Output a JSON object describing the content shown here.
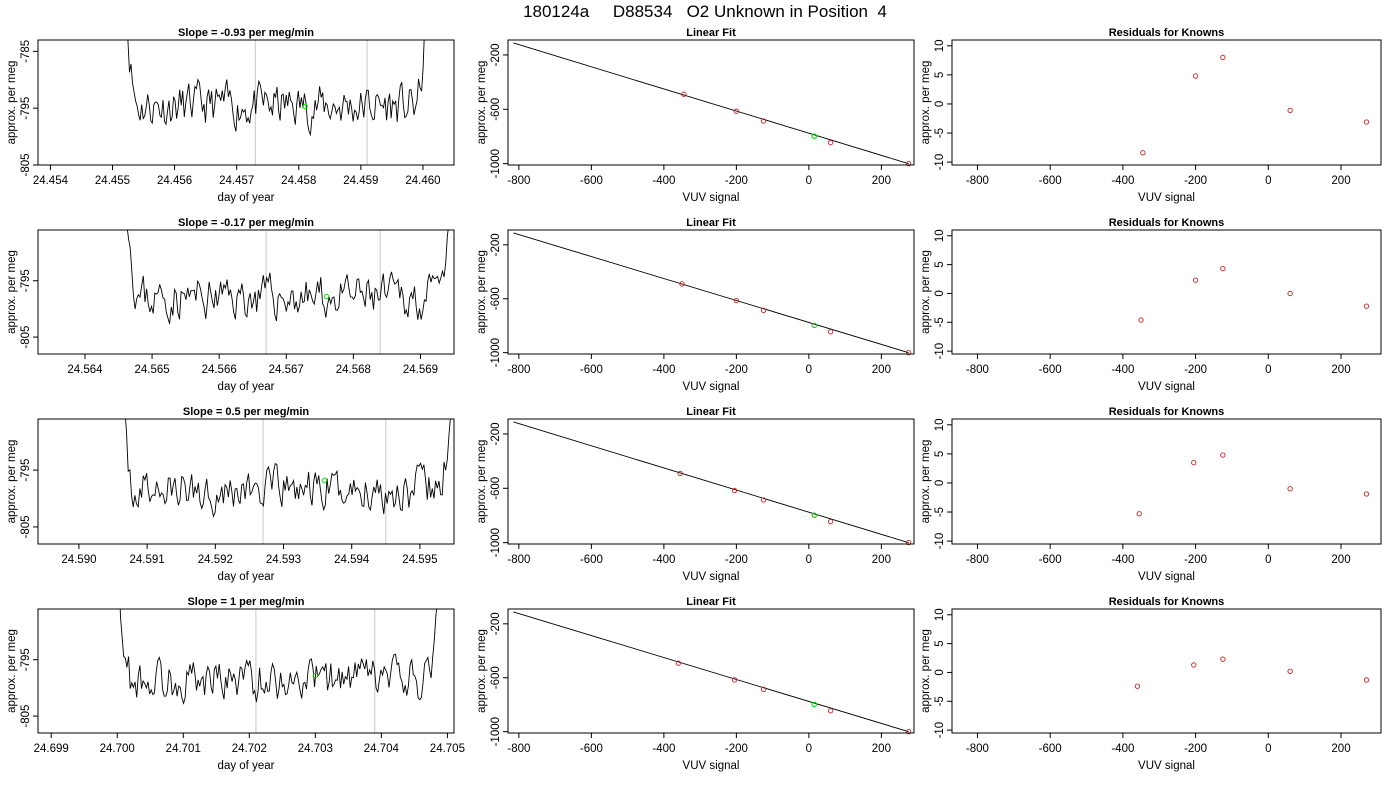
{
  "title": "180124a     D88534   O2 Unknown in Position  4",
  "colors": {
    "trace": "#000000",
    "unknown_point": "#00e000",
    "known_point": "#cc2222",
    "guide_line": "#c8c8c8",
    "fit_line": "#000000"
  },
  "chart_data": [
    {
      "type": "line",
      "role": "trace",
      "title": "Slope =  -0.93  per meg/min",
      "xlabel": "day of year",
      "ylabel": "approx. per meg",
      "xlim": [
        24.4538,
        24.4605
      ],
      "ylim": [
        -805,
        -783
      ],
      "xticks": [
        24.454,
        24.455,
        24.456,
        24.457,
        24.458,
        24.459,
        24.46
      ],
      "xtick_labels": [
        "24.454",
        "24.455",
        "24.456",
        "24.457",
        "24.458",
        "24.459",
        "24.460"
      ],
      "yticks": [
        -785,
        -795,
        -805
      ],
      "ytick_labels": [
        "-785",
        "-795",
        "-805"
      ],
      "vlines": [
        24.4573,
        24.4591
      ],
      "trace_start": 24.4552,
      "trace_end": 24.4601,
      "center": -794.6,
      "marker": {
        "x": 24.4581,
        "y": -794.7
      },
      "seed": 11
    },
    {
      "type": "line",
      "role": "trace",
      "title": "Slope =  -0.17  per meg/min",
      "xlabel": "day of year",
      "ylabel": "approx. per meg",
      "xlim": [
        24.5633,
        24.5695
      ],
      "ylim": [
        -808,
        -786
      ],
      "xticks": [
        24.564,
        24.565,
        24.566,
        24.567,
        24.568,
        24.569
      ],
      "xtick_labels": [
        "24.564",
        "24.565",
        "24.566",
        "24.567",
        "24.568",
        "24.569"
      ],
      "yticks": [
        -795,
        -805
      ],
      "ytick_labels": [
        "-795",
        "-805"
      ],
      "vlines": [
        24.5667,
        24.5684
      ],
      "trace_start": 24.5646,
      "trace_end": 24.5695,
      "center": -798.0,
      "marker": {
        "x": 24.5676,
        "y": -797.8
      },
      "seed": 23
    },
    {
      "type": "line",
      "role": "trace",
      "title": "Slope =  0.5  per meg/min",
      "xlabel": "day of year",
      "ylabel": "approx. per meg",
      "xlim": [
        24.5894,
        24.5955
      ],
      "ylim": [
        -808,
        -786
      ],
      "xticks": [
        24.59,
        24.591,
        24.592,
        24.593,
        24.594,
        24.595
      ],
      "xtick_labels": [
        "24.590",
        "24.591",
        "24.592",
        "24.593",
        "24.594",
        "24.595"
      ],
      "yticks": [
        -795,
        -805
      ],
      "ytick_labels": [
        "-795",
        "-805"
      ],
      "vlines": [
        24.5927,
        24.5945
      ],
      "trace_start": 24.5906,
      "trace_end": 24.5955,
      "center": -798.5,
      "marker": {
        "x": 24.5936,
        "y": -796.8
      },
      "seed": 37
    },
    {
      "type": "line",
      "role": "trace",
      "title": "Slope =  1  per meg/min",
      "xlabel": "day of year",
      "ylabel": "approx. per meg",
      "xlim": [
        24.6988,
        24.7051
      ],
      "ylim": [
        -808,
        -786
      ],
      "xticks": [
        24.699,
        24.7,
        24.701,
        24.702,
        24.703,
        24.704,
        24.705
      ],
      "xtick_labels": [
        "24.699",
        "24.700",
        "24.701",
        "24.702",
        "24.703",
        "24.704",
        "24.705"
      ],
      "yticks": [
        -795,
        -805
      ],
      "ytick_labels": [
        "-795",
        "-805"
      ],
      "vlines": [
        24.7021,
        24.7039
      ],
      "trace_start": 24.7,
      "trace_end": 24.7049,
      "center": -798.5,
      "marker": {
        "x": 24.703,
        "y": -797.8
      },
      "seed": 53
    },
    {
      "type": "scatter",
      "role": "fit",
      "title": "Linear Fit",
      "xlabel": "VUV signal",
      "ylabel": "approx. per meg",
      "xlim": [
        -830,
        290
      ],
      "ylim": [
        -1010,
        -90
      ],
      "xticks": [
        -800,
        -600,
        -400,
        -200,
        0,
        200
      ],
      "xtick_labels": [
        "-800",
        "-600",
        "-400",
        "-200",
        "0",
        "200"
      ],
      "yticks": [
        -200,
        -600,
        -1000
      ],
      "ytick_labels": [
        "-200",
        "-600",
        "-1000"
      ],
      "line": {
        "x": [
          -815,
          275
        ],
        "y": [
          -112,
          -1000
        ]
      },
      "known": {
        "x": [
          -345,
          -200,
          -125,
          60,
          275
        ],
        "y": [
          -489,
          -614,
          -686,
          -845,
          -1000
        ]
      },
      "unknown": {
        "x": [
          15,
          15
        ],
        "y": [
          -798,
          -798
        ]
      }
    },
    {
      "type": "scatter",
      "role": "fit",
      "title": "Linear Fit",
      "xlabel": "VUV signal",
      "ylabel": "approx. per meg",
      "xlim": [
        -830,
        290
      ],
      "ylim": [
        -1010,
        -90
      ],
      "xticks": [
        -800,
        -600,
        -400,
        -200,
        0,
        200
      ],
      "xtick_labels": [
        "-800",
        "-600",
        "-400",
        "-200",
        "0",
        "200"
      ],
      "yticks": [
        -200,
        -600,
        -1000
      ],
      "ytick_labels": [
        "-200",
        "-600",
        "-1000"
      ],
      "line": {
        "x": [
          -815,
          275
        ],
        "y": [
          -112,
          -1000
        ]
      },
      "known": {
        "x": [
          -350,
          -200,
          -125,
          60,
          275
        ],
        "y": [
          -490,
          -614,
          -686,
          -845,
          -1000
        ]
      },
      "unknown": {
        "x": [
          15,
          15
        ],
        "y": [
          -798,
          -798
        ]
      }
    },
    {
      "type": "scatter",
      "role": "fit",
      "title": "Linear Fit",
      "xlabel": "VUV signal",
      "ylabel": "approx. per meg",
      "xlim": [
        -830,
        290
      ],
      "ylim": [
        -1010,
        -90
      ],
      "xticks": [
        -800,
        -600,
        -400,
        -200,
        0,
        200
      ],
      "xtick_labels": [
        "-800",
        "-600",
        "-400",
        "-200",
        "0",
        "200"
      ],
      "yticks": [
        -200,
        -600,
        -1000
      ],
      "ytick_labels": [
        "-200",
        "-600",
        "-1000"
      ],
      "line": {
        "x": [
          -815,
          275
        ],
        "y": [
          -112,
          -1000
        ]
      },
      "known": {
        "x": [
          -355,
          -205,
          -125,
          60,
          275
        ],
        "y": [
          -490,
          -616,
          -686,
          -845,
          -1000
        ]
      },
      "unknown": {
        "x": [
          15,
          15
        ],
        "y": [
          -798,
          -798
        ]
      }
    },
    {
      "type": "scatter",
      "role": "fit",
      "title": "Linear Fit",
      "xlabel": "VUV signal",
      "ylabel": "approx. per meg",
      "xlim": [
        -830,
        290
      ],
      "ylim": [
        -1010,
        -90
      ],
      "xticks": [
        -800,
        -600,
        -400,
        -200,
        0,
        200
      ],
      "xtick_labels": [
        "-800",
        "-600",
        "-400",
        "-200",
        "0",
        "200"
      ],
      "yticks": [
        -200,
        -600,
        -1000
      ],
      "ytick_labels": [
        "-200",
        "-600",
        "-1000"
      ],
      "line": {
        "x": [
          -815,
          275
        ],
        "y": [
          -112,
          -1000
        ]
      },
      "known": {
        "x": [
          -360,
          -205,
          -125,
          60,
          275
        ],
        "y": [
          -492,
          -616,
          -686,
          -845,
          -1000
        ]
      },
      "unknown": {
        "x": [
          15,
          15
        ],
        "y": [
          -798,
          -798
        ]
      }
    },
    {
      "type": "scatter",
      "role": "residuals",
      "title": "Residuals for Knowns",
      "xlabel": "VUV signal",
      "ylabel": "approx. per meg",
      "xlim": [
        -870,
        310
      ],
      "ylim": [
        -10.5,
        11
      ],
      "xticks": [
        -800,
        -600,
        -400,
        -200,
        0,
        200
      ],
      "xtick_labels": [
        "-800",
        "-600",
        "-400",
        "-200",
        "0",
        "200"
      ],
      "yticks": [
        10,
        5,
        0,
        -5,
        -10
      ],
      "ytick_labels": [
        "10",
        "5",
        "0",
        "-5",
        "-10"
      ],
      "known": {
        "x": [
          -345,
          -200,
          -125,
          60,
          270
        ],
        "y": [
          -8.4,
          4.8,
          8.0,
          -1.1,
          -3.1
        ]
      }
    },
    {
      "type": "scatter",
      "role": "residuals",
      "title": "Residuals for Knowns",
      "xlabel": "VUV signal",
      "ylabel": "approx. per meg",
      "xlim": [
        -870,
        310
      ],
      "ylim": [
        -10.5,
        11
      ],
      "xticks": [
        -800,
        -600,
        -400,
        -200,
        0,
        200
      ],
      "xtick_labels": [
        "-800",
        "-600",
        "-400",
        "-200",
        "0",
        "200"
      ],
      "yticks": [
        10,
        5,
        0,
        -5,
        -10
      ],
      "ytick_labels": [
        "10",
        "5",
        "0",
        "-5",
        "-10"
      ],
      "known": {
        "x": [
          -350,
          -200,
          -125,
          60,
          270
        ],
        "y": [
          -4.6,
          2.3,
          4.3,
          0.0,
          -2.2
        ]
      }
    },
    {
      "type": "scatter",
      "role": "residuals",
      "title": "Residuals for Knowns",
      "xlabel": "VUV signal",
      "ylabel": "approx. per meg",
      "xlim": [
        -870,
        310
      ],
      "ylim": [
        -10.5,
        11
      ],
      "xticks": [
        -800,
        -600,
        -400,
        -200,
        0,
        200
      ],
      "xtick_labels": [
        "-800",
        "-600",
        "-400",
        "-200",
        "0",
        "200"
      ],
      "yticks": [
        10,
        5,
        0,
        -5,
        -10
      ],
      "ytick_labels": [
        "10",
        "5",
        "0",
        "-5",
        "-10"
      ],
      "known": {
        "x": [
          -355,
          -205,
          -125,
          60,
          270
        ],
        "y": [
          -5.3,
          3.5,
          4.8,
          -1.0,
          -1.9
        ]
      }
    },
    {
      "type": "scatter",
      "role": "residuals",
      "title": "Residuals for Knowns",
      "xlabel": "VUV signal",
      "ylabel": "approx. per meg",
      "xlim": [
        -870,
        310
      ],
      "ylim": [
        -10.5,
        11
      ],
      "xticks": [
        -800,
        -600,
        -400,
        -200,
        0,
        200
      ],
      "xtick_labels": [
        "-800",
        "-600",
        "-400",
        "-200",
        "0",
        "200"
      ],
      "yticks": [
        10,
        5,
        0,
        -5,
        -10
      ],
      "ytick_labels": [
        "10",
        "5",
        "0",
        "-5",
        "-10"
      ],
      "known": {
        "x": [
          -360,
          -205,
          -125,
          60,
          270
        ],
        "y": [
          -2.4,
          1.3,
          2.3,
          0.2,
          -1.3
        ]
      }
    }
  ]
}
